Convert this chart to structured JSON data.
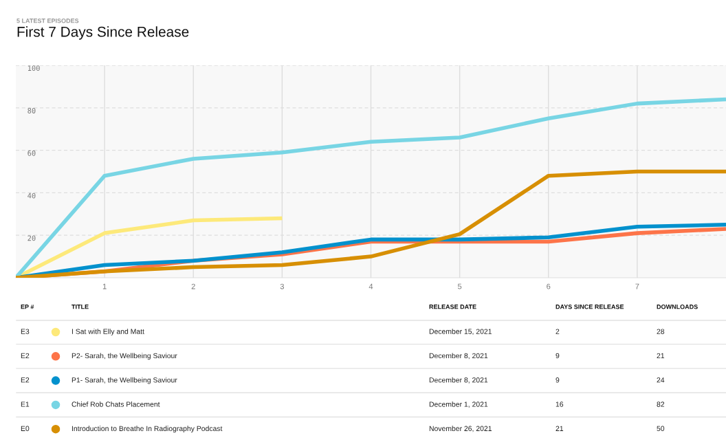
{
  "chart_data": {
    "type": "line",
    "subtitle": "5 LATEST EPISODES",
    "title": "First 7 Days Since Release",
    "x": [
      0,
      1,
      2,
      3,
      4,
      5,
      6,
      7,
      8
    ],
    "series": [
      {
        "name": "I Sat with Elly and Matt",
        "color": "#fde97a",
        "values": [
          0,
          21,
          27,
          28,
          null,
          null,
          null,
          null,
          null
        ]
      },
      {
        "name": "P2- Sarah, the Wellbeing Saviour",
        "color": "#fd7449",
        "values": [
          0,
          3,
          8,
          11,
          17,
          17,
          17,
          21,
          23
        ]
      },
      {
        "name": "P1- Sarah, the Wellbeing Saviour",
        "color": "#0391cd",
        "values": [
          0,
          6,
          8,
          12,
          18,
          18,
          19,
          24,
          25
        ]
      },
      {
        "name": "Chief Rob Chats Placement",
        "color": "#78d5e4",
        "values": [
          0,
          48,
          56,
          59,
          64,
          66,
          75,
          82,
          84
        ]
      },
      {
        "name": "Introduction to Breathe In Radiography Podcast",
        "color": "#d78f04",
        "values": [
          0,
          3,
          5,
          6,
          10,
          20.5,
          48,
          50,
          50
        ]
      }
    ],
    "xlim": [
      0,
      8
    ],
    "xticks": [
      1,
      2,
      3,
      4,
      5,
      6,
      7
    ],
    "ylim": [
      0,
      100
    ],
    "yticks": [
      20,
      40,
      60,
      80,
      100
    ],
    "grid": true,
    "legend": "bottom",
    "marker": "none",
    "line_style": "solid",
    "annotations": [
      "EP #",
      "TITLE",
      "RELEASE DATE",
      "DAYS SINCE RELEASE",
      "DOWNLOADS",
      "E3",
      "December 15, 2021",
      "2",
      "28",
      "E2",
      "December 8, 2021",
      "9",
      "21",
      "E2",
      "December 8, 2021",
      "9",
      "24",
      "E1",
      "December 1, 2021",
      "16",
      "82",
      "E0",
      "November 26, 2021",
      "21",
      "50"
    ]
  }
}
